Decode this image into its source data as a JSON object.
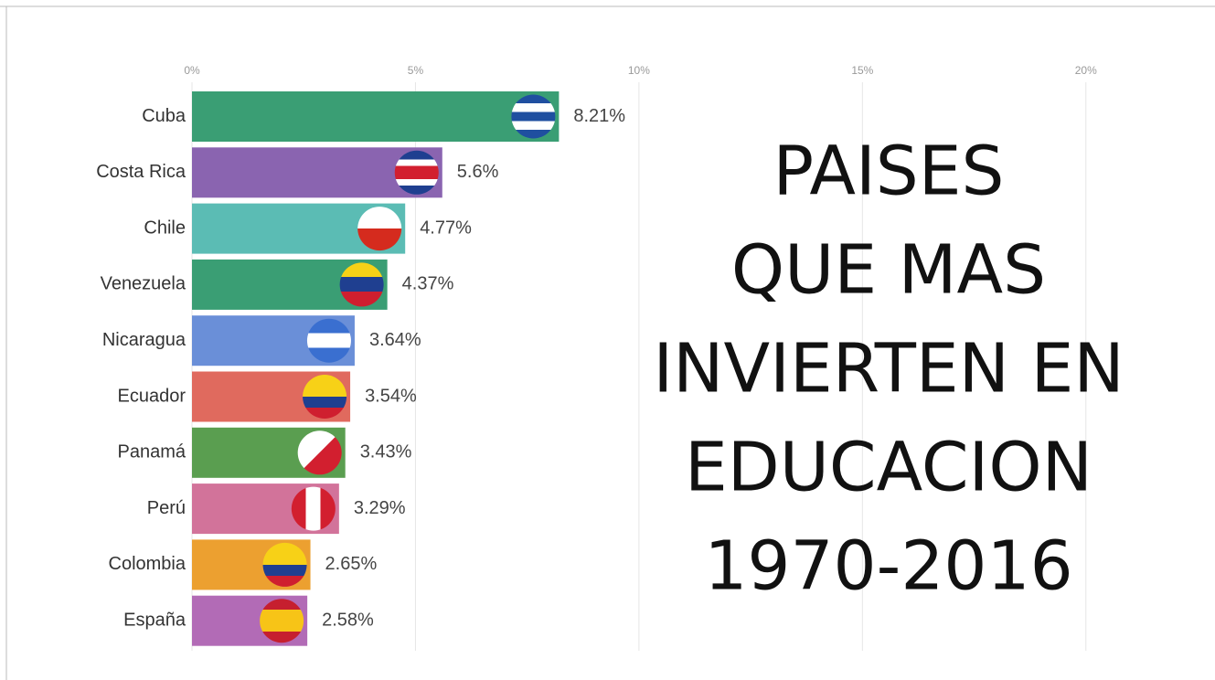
{
  "chart_data": {
    "type": "bar",
    "orientation": "horizontal",
    "title_lines": [
      "PAISES",
      "QUE MAS",
      "INVIERTEN EN",
      "EDUCACION",
      "1970-2016"
    ],
    "categories": [
      "Cuba",
      "Costa Rica",
      "Chile",
      "Venezuela",
      "Nicaragua",
      "Ecuador",
      "Panamá",
      "Perú",
      "Colombia",
      "España"
    ],
    "values": [
      8.21,
      5.6,
      4.77,
      4.37,
      3.64,
      3.54,
      3.43,
      3.29,
      2.65,
      2.58
    ],
    "value_labels": [
      "8.21%",
      "5.6%",
      "4.77%",
      "4.37%",
      "3.64%",
      "3.54%",
      "3.43%",
      "3.29%",
      "2.65%",
      "2.58%"
    ],
    "colors": [
      "#3a9e74",
      "#8a64b0",
      "#5bbcb4",
      "#3a9e74",
      "#6a8fd8",
      "#e06a5e",
      "#5a9e50",
      "#d2739a",
      "#eca030",
      "#b26bb6"
    ],
    "xlim": [
      0,
      22.5
    ],
    "xticks": [
      {
        "value": 0,
        "label": "0%"
      },
      {
        "value": 5,
        "label": "5%"
      },
      {
        "value": 10,
        "label": "10%"
      },
      {
        "value": 15,
        "label": "15%"
      },
      {
        "value": 20,
        "label": "20%"
      }
    ],
    "grid": true
  }
}
